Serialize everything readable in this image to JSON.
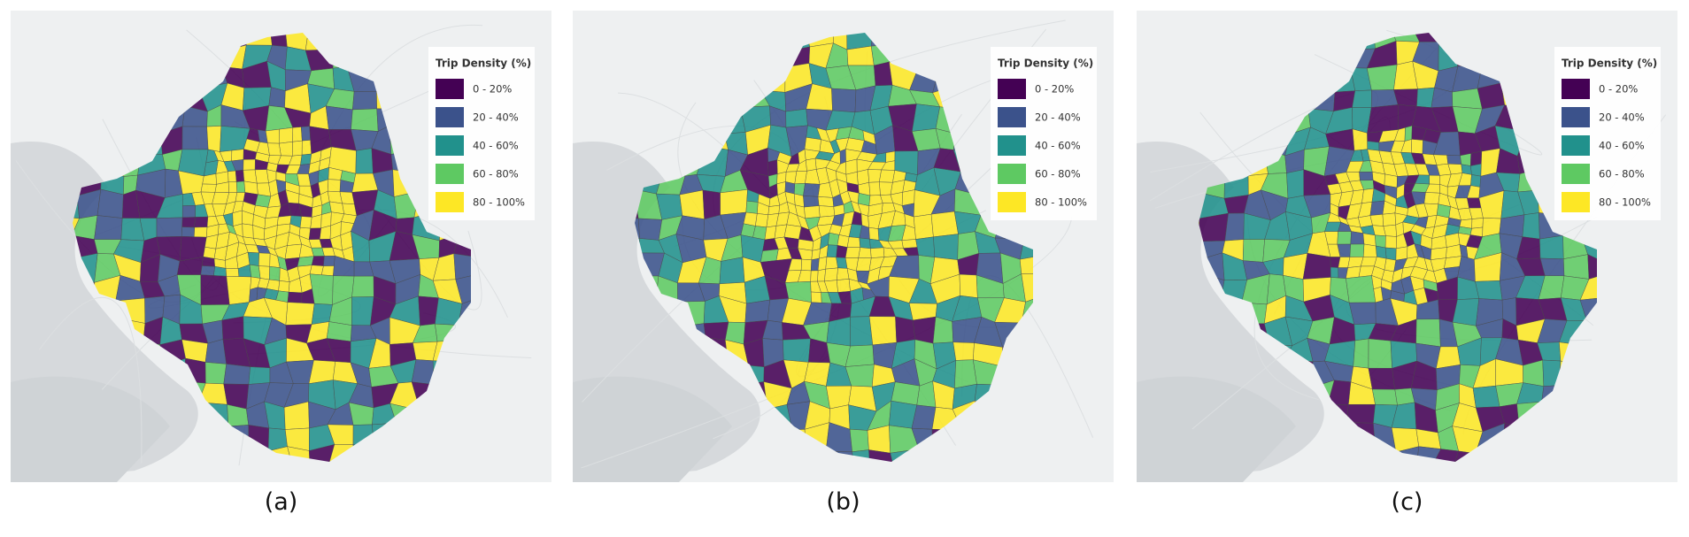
{
  "panels": [
    {
      "caption": "(a)"
    },
    {
      "caption": "(b)"
    },
    {
      "caption": "(c)"
    }
  ],
  "legend": {
    "title": "Trip Density (%)",
    "items": [
      {
        "label": "0 - 20%",
        "color": "#440154"
      },
      {
        "label": "20 - 40%",
        "color": "#3b528b"
      },
      {
        "label": "40 - 60%",
        "color": "#21918c"
      },
      {
        "label": "60 - 80%",
        "color": "#5ec962"
      },
      {
        "label": "80 - 100%",
        "color": "#fde725"
      }
    ]
  }
}
